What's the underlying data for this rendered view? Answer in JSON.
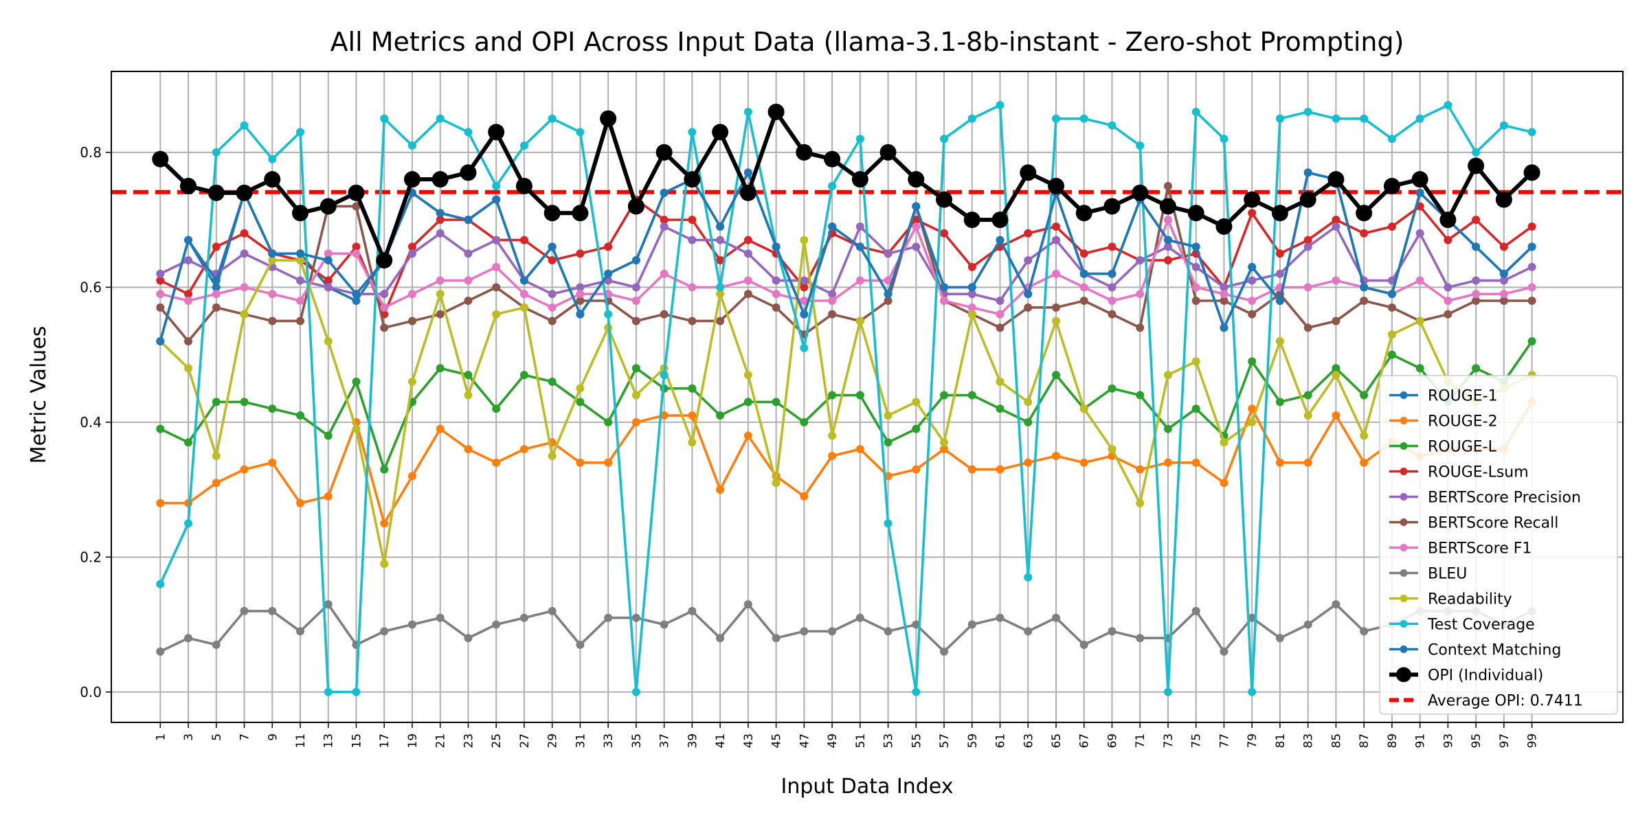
{
  "chart_data": {
    "type": "line",
    "title": "All Metrics and OPI Across Input Data (llama-3.1-8b-instant - Zero-shot Prompting)",
    "xlabel": "Input Data Index",
    "ylabel": "Metric Values",
    "ylim": [
      -0.045,
      0.92
    ],
    "yticks": [
      0.0,
      0.2,
      0.4,
      0.6,
      0.8
    ],
    "ytick_labels": [
      "0.0",
      "0.2",
      "0.4",
      "0.6",
      "0.8"
    ],
    "xlim": [
      -2.5,
      105.5
    ],
    "x": [
      1,
      3,
      5,
      7,
      9,
      11,
      13,
      15,
      17,
      19,
      21,
      23,
      25,
      27,
      29,
      31,
      33,
      35,
      37,
      39,
      41,
      43,
      45,
      47,
      49,
      51,
      53,
      55,
      57,
      59,
      61,
      63,
      65,
      67,
      69,
      71,
      73,
      75,
      77,
      79,
      81,
      83,
      85,
      87,
      89,
      91,
      93,
      95,
      97,
      99
    ],
    "xtick_labels": [
      "1",
      "3",
      "5",
      "7",
      "9",
      "11",
      "13",
      "15",
      "17",
      "19",
      "21",
      "23",
      "25",
      "27",
      "29",
      "31",
      "33",
      "35",
      "37",
      "39",
      "41",
      "43",
      "45",
      "47",
      "49",
      "51",
      "53",
      "55",
      "57",
      "59",
      "61",
      "63",
      "65",
      "67",
      "69",
      "71",
      "73",
      "75",
      "77",
      "79",
      "81",
      "83",
      "85",
      "87",
      "89",
      "91",
      "93",
      "95",
      "97",
      "99"
    ],
    "grid": true,
    "legend_position": "lower-right",
    "reference_line": {
      "label": "Average OPI: 0.7411",
      "value": 0.7411,
      "color": "#ff0000"
    },
    "series": [
      {
        "name": "ROUGE-1",
        "color": "#1f77b4",
        "values": [
          0.52,
          0.67,
          0.6,
          0.74,
          0.65,
          0.65,
          0.6,
          0.58,
          0.64,
          0.74,
          0.71,
          0.7,
          0.73,
          0.61,
          0.66,
          0.56,
          0.62,
          0.64,
          0.74,
          0.76,
          0.69,
          0.77,
          0.66,
          0.56,
          0.69,
          0.66,
          0.59,
          0.72,
          0.6,
          0.6,
          0.67,
          0.59,
          0.74,
          0.62,
          0.62,
          0.73,
          0.67,
          0.66,
          0.54,
          0.63,
          0.58,
          0.77,
          0.76,
          0.6,
          0.59,
          0.74,
          0.7,
          0.66,
          0.62,
          0.66
        ]
      },
      {
        "name": "ROUGE-2",
        "color": "#ff7f0e",
        "values": [
          0.28,
          0.28,
          0.31,
          0.33,
          0.34,
          0.28,
          0.29,
          0.4,
          0.25,
          0.32,
          0.39,
          0.36,
          0.34,
          0.36,
          0.37,
          0.34,
          0.34,
          0.4,
          0.41,
          0.41,
          0.3,
          0.38,
          0.32,
          0.29,
          0.35,
          0.36,
          0.32,
          0.33,
          0.36,
          0.33,
          0.33,
          0.34,
          0.35,
          0.34,
          0.35,
          0.33,
          0.34,
          0.34,
          0.31,
          0.42,
          0.34,
          0.34,
          0.41,
          0.34,
          0.37,
          0.35,
          0.36,
          0.36,
          0.36,
          0.43
        ]
      },
      {
        "name": "ROUGE-L",
        "color": "#2ca02c",
        "values": [
          0.39,
          0.37,
          0.43,
          0.43,
          0.42,
          0.41,
          0.38,
          0.46,
          0.33,
          0.43,
          0.48,
          0.47,
          0.42,
          0.47,
          0.46,
          0.43,
          0.4,
          0.48,
          0.45,
          0.45,
          0.41,
          0.43,
          0.43,
          0.4,
          0.44,
          0.44,
          0.37,
          0.39,
          0.44,
          0.44,
          0.42,
          0.4,
          0.47,
          0.42,
          0.45,
          0.44,
          0.39,
          0.42,
          0.38,
          0.49,
          0.43,
          0.44,
          0.48,
          0.44,
          0.5,
          0.48,
          0.43,
          0.48,
          0.46,
          0.52
        ]
      },
      {
        "name": "ROUGE-Lsum",
        "color": "#d62728",
        "values": [
          0.61,
          0.59,
          0.66,
          0.68,
          0.65,
          0.64,
          0.61,
          0.66,
          0.56,
          0.66,
          0.7,
          0.7,
          0.67,
          0.67,
          0.64,
          0.65,
          0.66,
          0.73,
          0.7,
          0.7,
          0.64,
          0.67,
          0.65,
          0.6,
          0.68,
          0.66,
          0.65,
          0.7,
          0.68,
          0.63,
          0.66,
          0.68,
          0.69,
          0.65,
          0.66,
          0.64,
          0.64,
          0.65,
          0.6,
          0.71,
          0.65,
          0.67,
          0.7,
          0.68,
          0.69,
          0.72,
          0.67,
          0.7,
          0.66,
          0.69
        ]
      },
      {
        "name": "BERTScore Precision",
        "color": "#9467bd",
        "values": [
          0.62,
          0.64,
          0.62,
          0.65,
          0.63,
          0.61,
          0.6,
          0.59,
          0.59,
          0.65,
          0.68,
          0.65,
          0.67,
          0.61,
          0.59,
          0.6,
          0.61,
          0.6,
          0.69,
          0.67,
          0.67,
          0.65,
          0.61,
          0.61,
          0.59,
          0.69,
          0.65,
          0.66,
          0.59,
          0.59,
          0.58,
          0.64,
          0.67,
          0.62,
          0.6,
          0.64,
          0.66,
          0.63,
          0.6,
          0.61,
          0.62,
          0.66,
          0.69,
          0.61,
          0.61,
          0.68,
          0.6,
          0.61,
          0.61,
          0.63
        ]
      },
      {
        "name": "BERTScore Recall",
        "color": "#8c564b",
        "values": [
          0.57,
          0.52,
          0.57,
          0.56,
          0.55,
          0.55,
          0.72,
          0.72,
          0.54,
          0.55,
          0.56,
          0.58,
          0.6,
          0.57,
          0.55,
          0.58,
          0.58,
          0.55,
          0.56,
          0.55,
          0.55,
          0.59,
          0.57,
          0.53,
          0.56,
          0.55,
          0.58,
          0.72,
          0.58,
          0.56,
          0.54,
          0.57,
          0.57,
          0.58,
          0.56,
          0.54,
          0.75,
          0.58,
          0.58,
          0.56,
          0.59,
          0.54,
          0.55,
          0.58,
          0.57,
          0.55,
          0.56,
          0.58,
          0.58,
          0.58
        ]
      },
      {
        "name": "BERTScore F1",
        "color": "#e377c2",
        "values": [
          0.59,
          0.58,
          0.59,
          0.6,
          0.59,
          0.58,
          0.65,
          0.65,
          0.57,
          0.59,
          0.61,
          0.61,
          0.63,
          0.59,
          0.57,
          0.59,
          0.59,
          0.58,
          0.62,
          0.6,
          0.6,
          0.61,
          0.59,
          0.58,
          0.58,
          0.61,
          0.61,
          0.69,
          0.58,
          0.57,
          0.56,
          0.6,
          0.62,
          0.6,
          0.58,
          0.59,
          0.7,
          0.6,
          0.59,
          0.58,
          0.6,
          0.6,
          0.61,
          0.6,
          0.59,
          0.61,
          0.58,
          0.59,
          0.59,
          0.6
        ]
      },
      {
        "name": "BLEU",
        "color": "#7f7f7f",
        "values": [
          0.06,
          0.08,
          0.07,
          0.12,
          0.12,
          0.09,
          0.13,
          0.07,
          0.09,
          0.1,
          0.11,
          0.08,
          0.1,
          0.11,
          0.12,
          0.07,
          0.11,
          0.11,
          0.1,
          0.12,
          0.08,
          0.13,
          0.08,
          0.09,
          0.09,
          0.11,
          0.09,
          0.1,
          0.06,
          0.1,
          0.11,
          0.09,
          0.11,
          0.07,
          0.09,
          0.08,
          0.08,
          0.12,
          0.06,
          0.11,
          0.08,
          0.1,
          0.13,
          0.09,
          0.1,
          0.12,
          0.12,
          0.12,
          0.1,
          0.12
        ]
      },
      {
        "name": "Readability",
        "color": "#bcbd22",
        "values": [
          0.52,
          0.48,
          0.35,
          0.56,
          0.64,
          0.64,
          0.52,
          0.39,
          0.19,
          0.46,
          0.59,
          0.44,
          0.56,
          0.57,
          0.35,
          0.45,
          0.54,
          0.44,
          0.48,
          0.37,
          0.59,
          0.47,
          0.31,
          0.67,
          0.38,
          0.55,
          0.41,
          0.43,
          0.37,
          0.56,
          0.46,
          0.43,
          0.55,
          0.42,
          0.36,
          0.28,
          0.47,
          0.49,
          0.37,
          0.4,
          0.52,
          0.41,
          0.47,
          0.38,
          0.53,
          0.55,
          0.46,
          0.43,
          0.45,
          0.47
        ]
      },
      {
        "name": "Test Coverage",
        "color": "#17becf",
        "values": [
          0.16,
          0.25,
          0.8,
          0.84,
          0.79,
          0.83,
          0.0,
          0.0,
          0.85,
          0.81,
          0.85,
          0.83,
          0.75,
          0.81,
          0.85,
          0.83,
          0.56,
          0.0,
          0.47,
          0.83,
          0.6,
          0.86,
          0.66,
          0.51,
          0.75,
          0.82,
          0.25,
          0.0,
          0.82,
          0.85,
          0.87,
          0.17,
          0.85,
          0.85,
          0.84,
          0.81,
          0.0,
          0.86,
          0.82,
          0.0,
          0.85,
          0.86,
          0.85,
          0.85,
          0.82,
          0.85,
          0.87,
          0.8,
          0.84,
          0.83
        ]
      },
      {
        "name": "Context Matching",
        "color": "#1f77b4",
        "values": [
          0.52,
          0.67,
          0.61,
          0.74,
          0.65,
          0.65,
          0.64,
          0.59,
          0.64,
          0.74,
          0.71,
          0.7,
          0.73,
          0.61,
          0.66,
          0.56,
          0.62,
          0.64,
          0.74,
          0.76,
          0.69,
          0.77,
          0.66,
          0.56,
          0.69,
          0.66,
          0.59,
          0.72,
          0.6,
          0.6,
          0.67,
          0.59,
          0.74,
          0.62,
          0.62,
          0.73,
          0.67,
          0.66,
          0.54,
          0.63,
          0.58,
          0.77,
          0.76,
          0.6,
          0.59,
          0.74,
          0.7,
          0.66,
          0.62,
          0.66
        ]
      },
      {
        "name": "OPI (Individual)",
        "color": "#000000",
        "values": [
          0.79,
          0.75,
          0.74,
          0.74,
          0.76,
          0.71,
          0.72,
          0.74,
          0.64,
          0.76,
          0.76,
          0.77,
          0.83,
          0.75,
          0.71,
          0.71,
          0.85,
          0.72,
          0.8,
          0.76,
          0.83,
          0.74,
          0.86,
          0.8,
          0.79,
          0.76,
          0.8,
          0.76,
          0.73,
          0.7,
          0.7,
          0.77,
          0.75,
          0.71,
          0.72,
          0.74,
          0.72,
          0.71,
          0.69,
          0.73,
          0.71,
          0.73,
          0.76,
          0.71,
          0.75,
          0.76,
          0.7,
          0.78,
          0.73,
          0.77
        ]
      }
    ]
  }
}
